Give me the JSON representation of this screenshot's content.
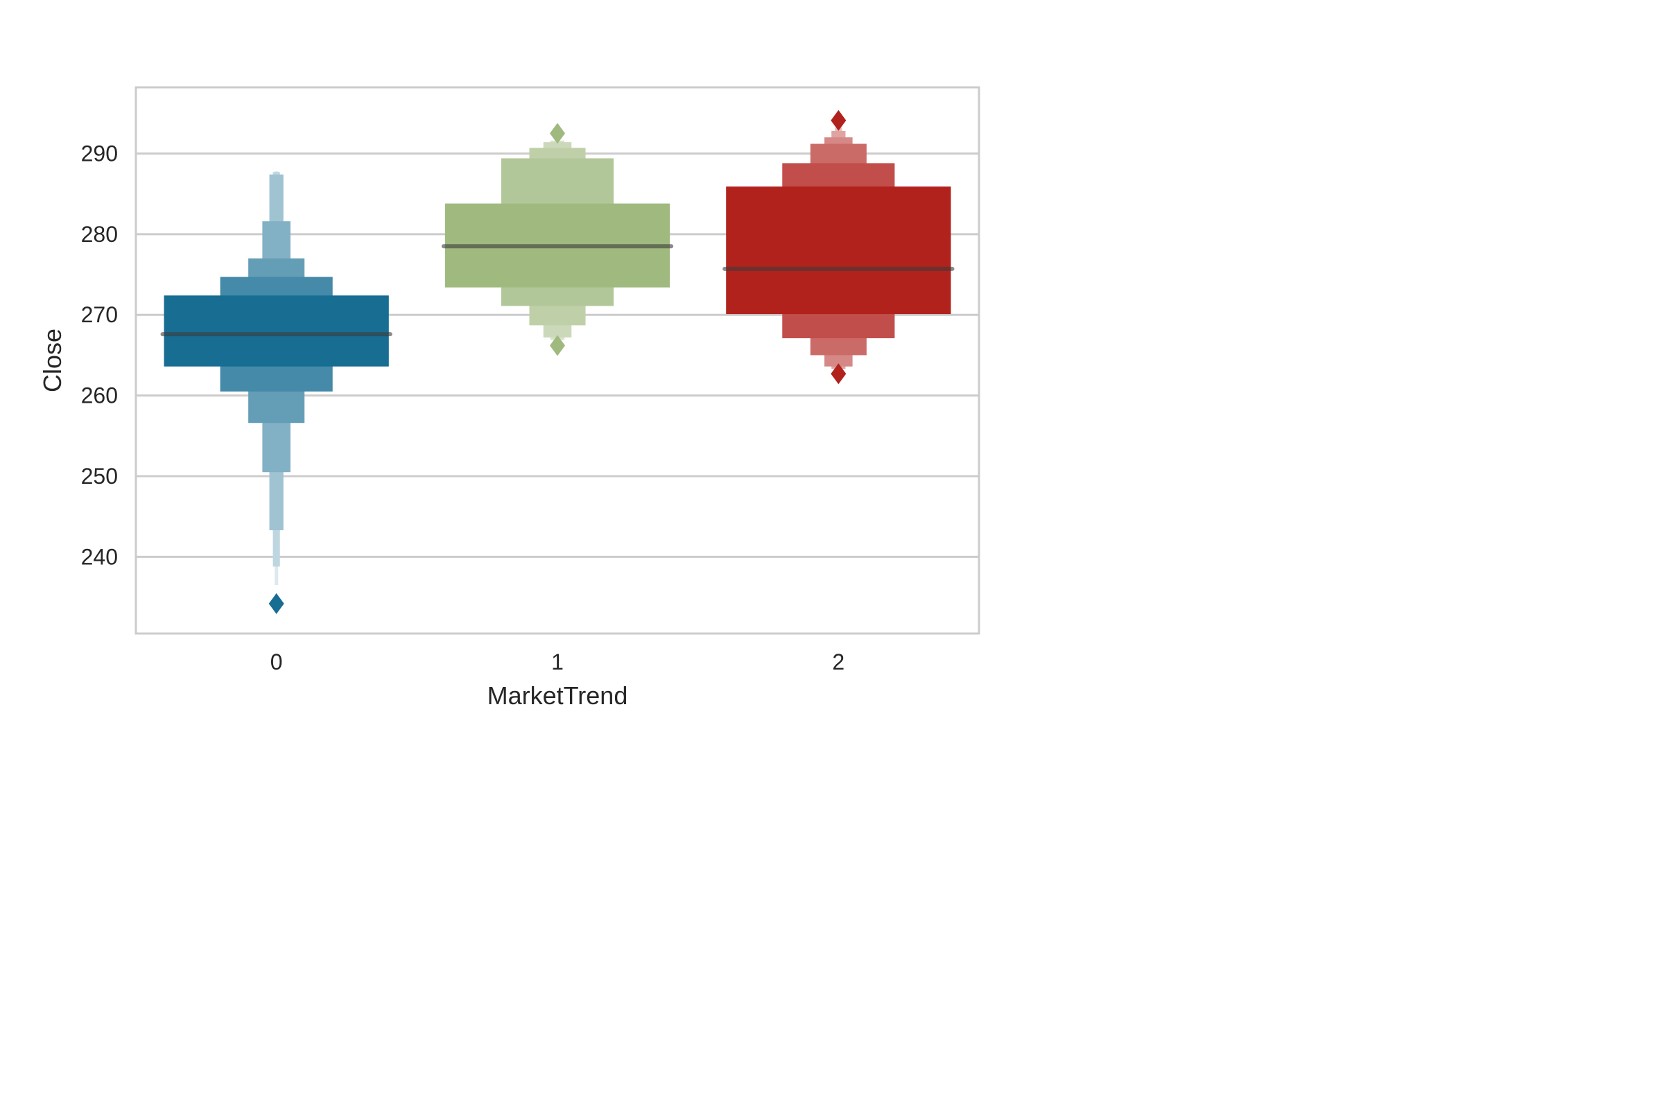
{
  "chart_data": {
    "type": "boxen",
    "xlabel": "MarketTrend",
    "ylabel": "Close",
    "categories": [
      "0",
      "1",
      "2"
    ],
    "yticks": [
      240,
      250,
      260,
      270,
      280,
      290
    ],
    "ylim": [
      230.5,
      298.2
    ],
    "grid": true,
    "series": [
      {
        "category": "0",
        "color": "#176d92",
        "median": 267.6,
        "levels": [
          {
            "low": 263.6,
            "high": 272.4
          },
          {
            "low": 260.5,
            "high": 274.7
          },
          {
            "low": 256.6,
            "high": 277.0
          },
          {
            "low": 250.5,
            "high": 281.6
          },
          {
            "low": 243.3,
            "high": 287.4
          },
          {
            "low": 238.8,
            "high": 287.7
          },
          {
            "low": 236.5,
            "high": 287.8
          }
        ],
        "outliers": [
          234.2
        ]
      },
      {
        "category": "1",
        "color": "#9fb97f",
        "median": 278.5,
        "levels": [
          {
            "low": 273.4,
            "high": 283.8
          },
          {
            "low": 271.1,
            "high": 289.4
          },
          {
            "low": 268.7,
            "high": 290.7
          },
          {
            "low": 267.2,
            "high": 291.4
          },
          {
            "low": 266.9,
            "high": 291.6
          }
        ],
        "outliers": [
          266.2,
          292.5
        ]
      },
      {
        "category": "2",
        "color": "#b1221d",
        "median": 275.7,
        "levels": [
          {
            "low": 270.1,
            "high": 285.9
          },
          {
            "low": 267.1,
            "high": 288.8
          },
          {
            "low": 265.0,
            "high": 291.2
          },
          {
            "low": 263.6,
            "high": 292.0
          },
          {
            "low": 263.3,
            "high": 292.8
          },
          {
            "low": 263.2,
            "high": 293.2
          }
        ],
        "outliers": [
          262.7,
          294.1
        ]
      }
    ]
  }
}
